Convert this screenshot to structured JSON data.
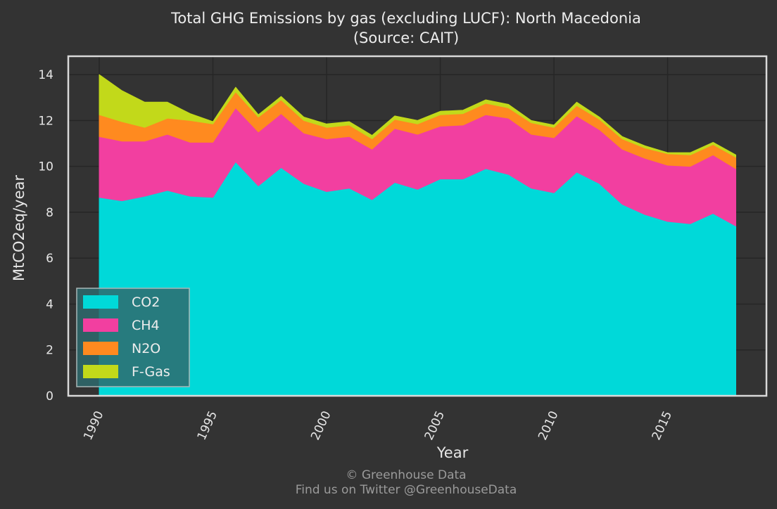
{
  "title_line1": "Total GHG Emissions by gas (excluding LUCF): North Macedonia",
  "title_line2": "(Source: CAIT)",
  "footer_line1": "© Greenhouse Data",
  "footer_line2": "Find us on Twitter @GreenhouseData",
  "colors": {
    "background": "#333333",
    "plot_background": "#333333",
    "grid": "#262626",
    "frame": "#d9d9d9",
    "CO2": "#00d9d9",
    "CH4": "#f23fa0",
    "N2O": "#ff8a1f",
    "F-Gas": "#c2d91a",
    "legend_bg": "#2e6a6d"
  },
  "chart_data": {
    "type": "area",
    "stacked": true,
    "title": "Total GHG Emissions by gas (excluding LUCF): North Macedonia (Source: CAIT)",
    "xlabel": "Year",
    "ylabel": "MtCO2eq/year",
    "xlim": [
      1990,
      2018
    ],
    "ylim": [
      0,
      14.8
    ],
    "xticks": [
      1990,
      1995,
      2000,
      2005,
      2010,
      2015
    ],
    "yticks": [
      0,
      2,
      4,
      6,
      8,
      10,
      12,
      14
    ],
    "grid": true,
    "legend_position": "lower-left",
    "x": [
      1990,
      1991,
      1992,
      1993,
      1994,
      1995,
      1996,
      1997,
      1998,
      1999,
      2000,
      2001,
      2002,
      2003,
      2004,
      2005,
      2006,
      2007,
      2008,
      2009,
      2010,
      2011,
      2012,
      2013,
      2014,
      2015,
      2016,
      2017,
      2018
    ],
    "series": [
      {
        "name": "CO2",
        "values": [
          8.65,
          8.5,
          8.7,
          8.95,
          8.7,
          8.65,
          10.2,
          9.15,
          9.95,
          9.25,
          8.9,
          9.05,
          8.55,
          9.3,
          9.0,
          9.45,
          9.45,
          9.9,
          9.65,
          9.05,
          8.85,
          9.75,
          9.25,
          8.35,
          7.9,
          7.6,
          7.5,
          7.95,
          7.4
        ]
      },
      {
        "name": "CH4",
        "values": [
          2.65,
          2.6,
          2.4,
          2.45,
          2.35,
          2.4,
          2.35,
          2.35,
          2.35,
          2.2,
          2.3,
          2.25,
          2.2,
          2.35,
          2.4,
          2.3,
          2.35,
          2.35,
          2.45,
          2.35,
          2.4,
          2.45,
          2.35,
          2.4,
          2.45,
          2.45,
          2.5,
          2.55,
          2.5
        ]
      },
      {
        "name": "N2O",
        "values": [
          0.95,
          0.85,
          0.6,
          0.7,
          0.95,
          0.8,
          0.7,
          0.65,
          0.6,
          0.55,
          0.5,
          0.5,
          0.45,
          0.4,
          0.45,
          0.5,
          0.5,
          0.5,
          0.45,
          0.5,
          0.45,
          0.45,
          0.45,
          0.45,
          0.45,
          0.5,
          0.5,
          0.45,
          0.5
        ]
      },
      {
        "name": "F-Gas",
        "values": [
          1.75,
          1.35,
          1.1,
          0.7,
          0.3,
          0.1,
          0.2,
          0.1,
          0.15,
          0.15,
          0.15,
          0.15,
          0.15,
          0.15,
          0.15,
          0.15,
          0.15,
          0.15,
          0.15,
          0.1,
          0.1,
          0.15,
          0.1,
          0.1,
          0.1,
          0.05,
          0.1,
          0.1,
          0.1
        ]
      }
    ]
  }
}
